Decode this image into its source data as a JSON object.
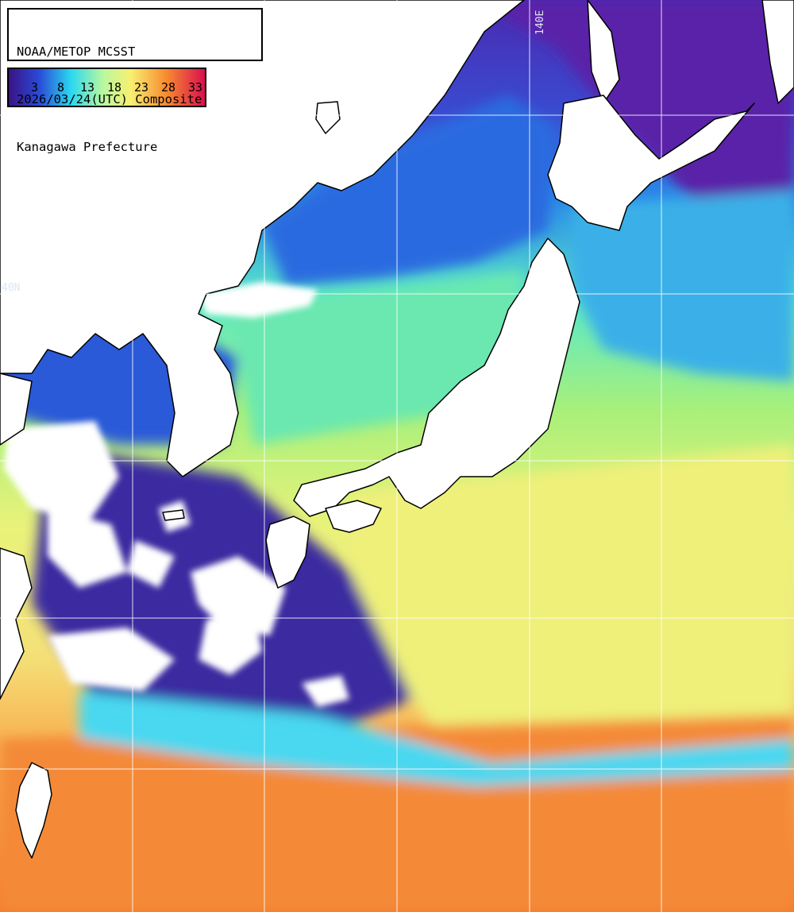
{
  "header": {
    "title_lines": [
      "NOAA/METOP MCSST",
      "2026/03/24(UTC) Composite",
      "Kanagawa Prefecture"
    ]
  },
  "colorbar": {
    "tick_labels": [
      "3",
      "8",
      "13",
      "18",
      "23",
      "28",
      "33"
    ],
    "colors": [
      "#4a1aa0",
      "#1a6af0",
      "#30e8e8",
      "#c8f890",
      "#f8f878",
      "#f8a040",
      "#e81048"
    ]
  },
  "graticule": {
    "lat_label": "40N",
    "lon_label": "140E"
  },
  "colors": {
    "land": "#ffffff",
    "coastline": "#000000",
    "gridline": "#ffffff",
    "cold": "#5a2aa8",
    "cool": "#2a6ad8",
    "cyan": "#3ad8e8",
    "green": "#88f07a",
    "yellow": "#eef27e",
    "orange": "#f69a3a",
    "red": "#ee6a2a"
  }
}
